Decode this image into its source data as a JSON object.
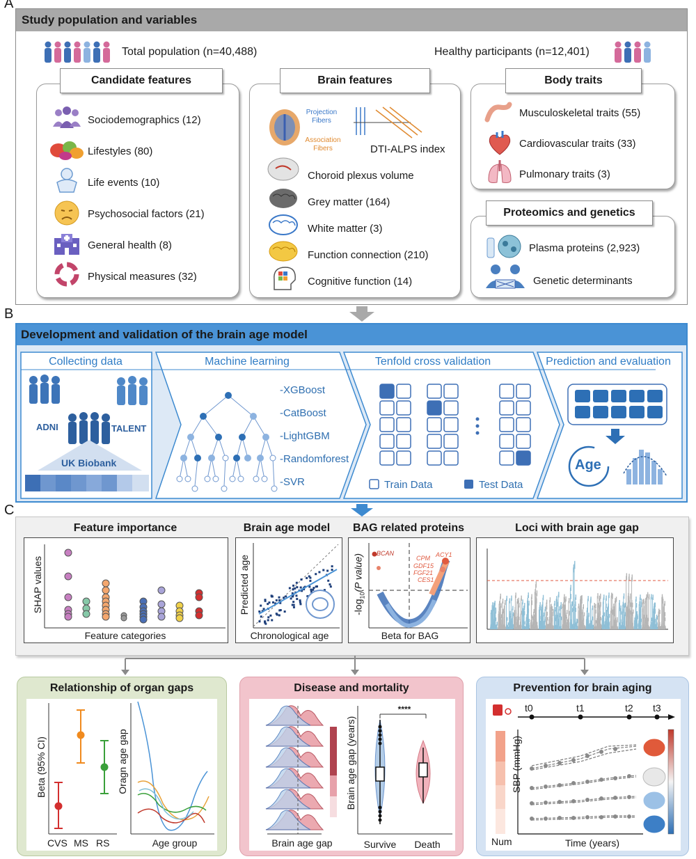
{
  "labels": {
    "a": "A",
    "b": "B",
    "c": "C"
  },
  "sectionA": {
    "title": "Study population and variables",
    "total_population": "Total population (n=40,488)",
    "healthy_participants": "Healthy participants (n=12,401)",
    "candidate": {
      "title": "Candidate features",
      "items": [
        {
          "label": "Sociodemographics (12)",
          "icon": "people-icon"
        },
        {
          "label": "Lifestyles (80)",
          "icon": "food-icon"
        },
        {
          "label": "Life events (10)",
          "icon": "baby-icon"
        },
        {
          "label": "Psychosocial factors (21)",
          "icon": "sad-face-icon"
        },
        {
          "label": "General health (8)",
          "icon": "hospital-icon"
        },
        {
          "label": "Physical measures (32)",
          "icon": "cycle-icon"
        }
      ]
    },
    "brain": {
      "title": "Brain features",
      "projection_fibers": "Projection Fibers",
      "association_fibers": "Association Fibers",
      "dti_alps": "DTI-ALPS index",
      "items": [
        {
          "label": "Choroid plexus volume",
          "icon": "choroid-brain-icon"
        },
        {
          "label": "Grey matter (164)",
          "icon": "grey-brain-icon"
        },
        {
          "label": "White matter (3)",
          "icon": "white-brain-icon"
        },
        {
          "label": "Function connection (210)",
          "icon": "yellow-brain-icon"
        },
        {
          "label": "Cognitive function (14)",
          "icon": "head-icon"
        }
      ]
    },
    "body": {
      "title": "Body traits",
      "items": [
        {
          "label": "Musculoskeletal traits  (55)",
          "icon": "arm-icon"
        },
        {
          "label": "Cardiovascular  traits (33)",
          "icon": "heart-icon"
        },
        {
          "label": "Pulmonary traits (3)",
          "icon": "lungs-icon"
        }
      ]
    },
    "proteomics": {
      "title": "Proteomics and genetics",
      "items": [
        {
          "label": "Plasma proteins (2,923)",
          "icon": "protein-icon"
        },
        {
          "label": "Genetic determinants",
          "icon": "dna-people-icon"
        }
      ]
    }
  },
  "sectionB": {
    "title": "Development and validation of the brain age model",
    "steps": [
      "Collecting data",
      "Machine learning",
      "Tenfold cross validation",
      "Prediction and evaluation"
    ],
    "cohorts": {
      "adni": "ADNI",
      "talent": "TALENT",
      "ukb": "UK Biobank"
    },
    "ml_methods": [
      "-XGBoost",
      "-CatBoost",
      "-LightGBM",
      "-Randomforest",
      "-SVR"
    ],
    "cv_legend": {
      "train": "Train Data",
      "test": "Test Data"
    },
    "age": "Age"
  },
  "sectionC": {
    "feature_importance": {
      "title": "Feature importance",
      "ylabel": "SHAP values",
      "xlabel": "Feature categories"
    },
    "brain_age_model": {
      "title": "Brain age model",
      "ylabel": "Predicted age",
      "xlabel": "Chronological age"
    },
    "bag_proteins": {
      "title": "BAG related proteins",
      "ylabel_pre": "-log",
      "ylabel_sub": "10",
      "ylabel_post": "(P value)",
      "xlabel": "Beta for BAG",
      "proteins": [
        "BCAN",
        "CPM",
        "ACY1",
        "GDF15",
        "FGF21",
        "CES1"
      ]
    },
    "loci": {
      "title": "Loci with brain age gap"
    }
  },
  "bottom": {
    "organ_gaps": {
      "title": "Relationship of organ gaps",
      "ylabel": "Beta (95% CI)",
      "categories": [
        "CVS",
        "MS",
        "RS"
      ],
      "ylabel2": "Oragn age gap",
      "xlabel2": "Age group"
    },
    "disease": {
      "title": "Disease and mortality",
      "xlabel": "Brain age gap",
      "ylabel": "Brain age gap (years)",
      "groups": [
        "Survive",
        "Death"
      ],
      "significance": "****"
    },
    "prevention": {
      "title": "Prevention for brain aging",
      "timepoints": [
        "t0",
        "t1",
        "t2",
        "t3"
      ],
      "ylabel": "SBP (mmHg)",
      "xlabel": "Time (years)",
      "num": "Num"
    }
  }
}
